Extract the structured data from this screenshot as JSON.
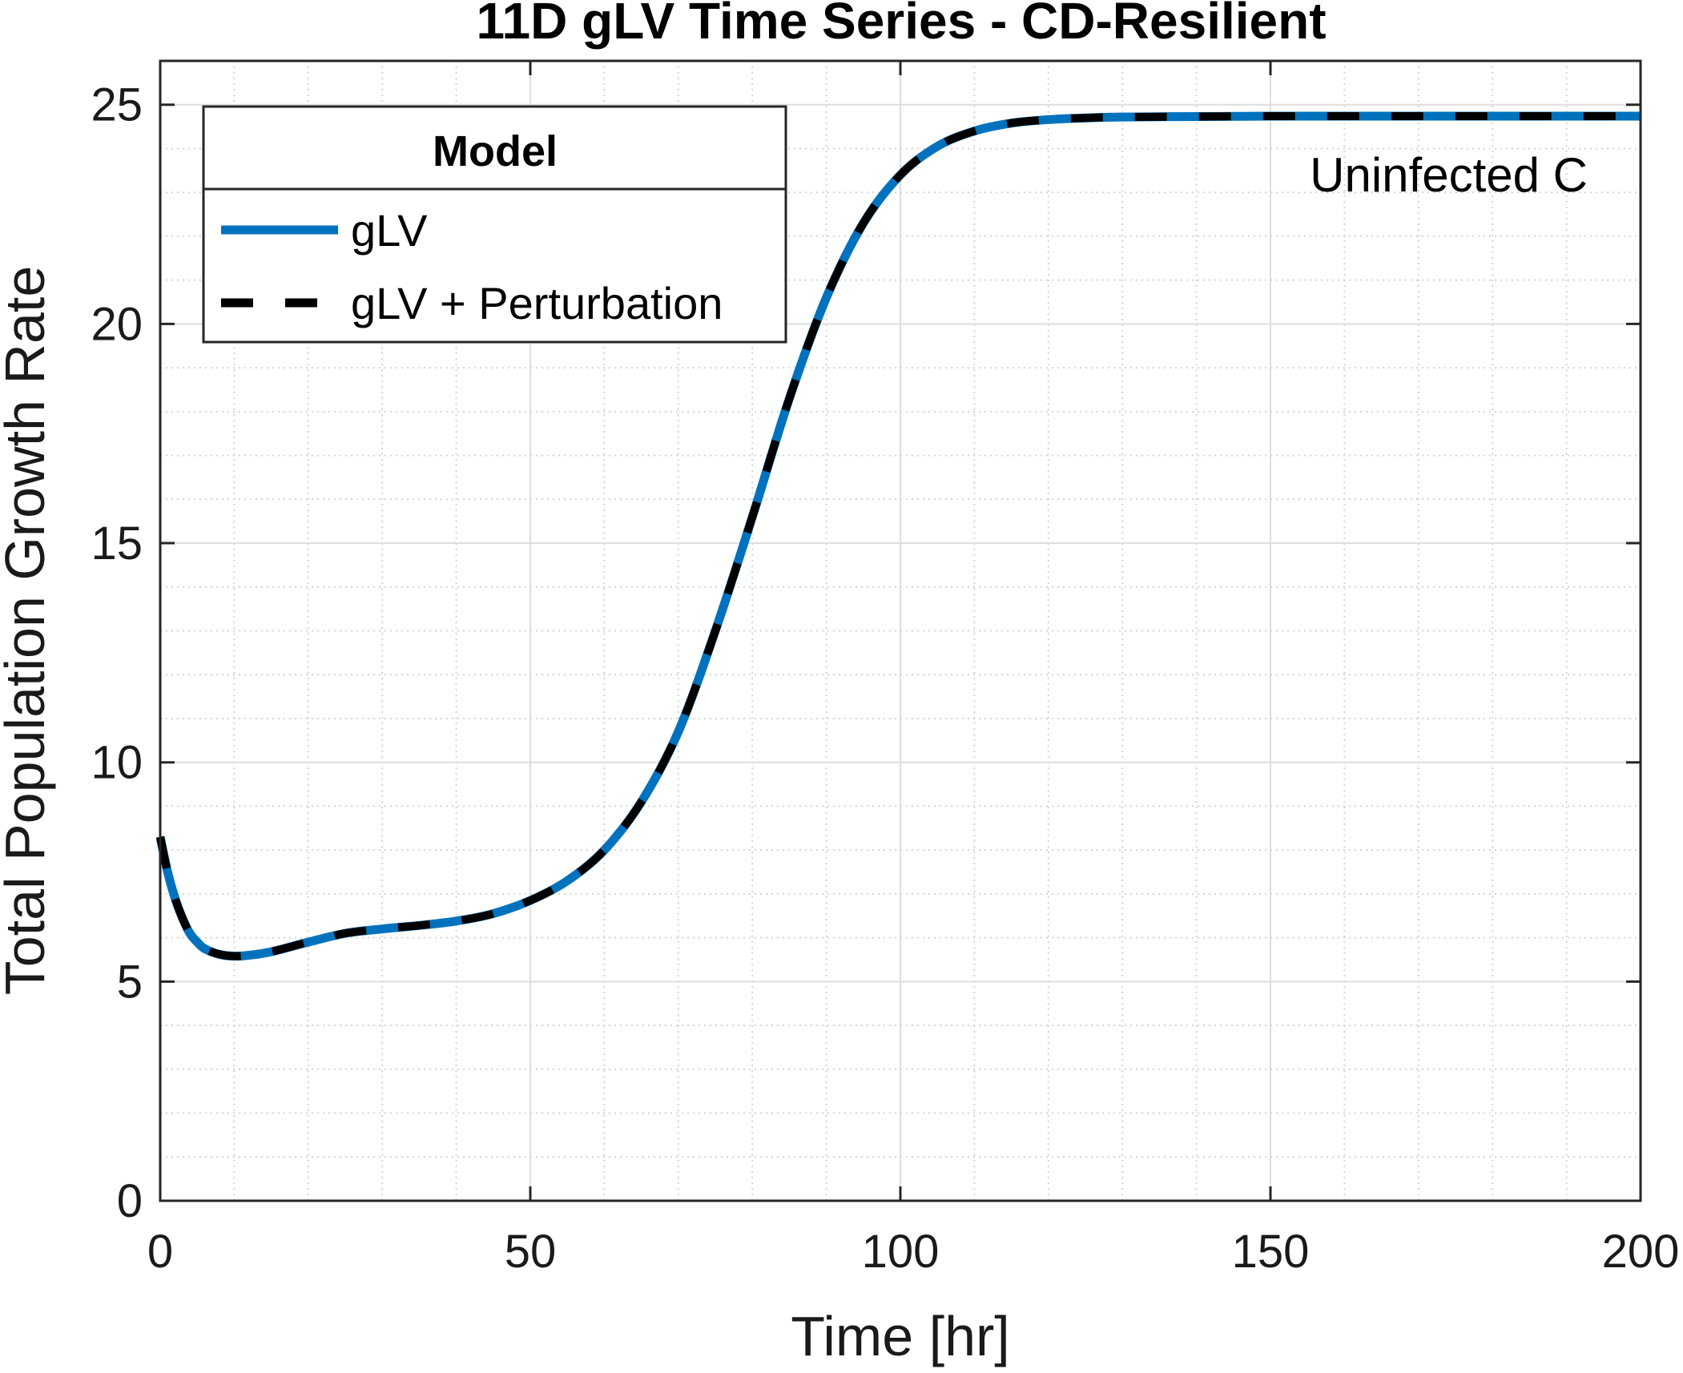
{
  "chart_data": {
    "type": "line",
    "title": "11D gLV Time Series - CD-Resilient",
    "xlabel": "Time [hr]",
    "ylabel": "Total Population Growth Rate",
    "xlim": [
      0,
      200
    ],
    "ylim": [
      0,
      26
    ],
    "xticks": [
      0,
      50,
      100,
      150,
      200
    ],
    "xtick_labels": [
      "0",
      "50",
      "100",
      "150",
      "200"
    ],
    "yticks": [
      0,
      5,
      10,
      15,
      20,
      25
    ],
    "ytick_labels": [
      "0",
      "5",
      "10",
      "15",
      "20",
      "25"
    ],
    "grid": "on",
    "minor_grid": "on",
    "legend": {
      "title": "Model",
      "placement": "top-left"
    },
    "annotation": "Uninfected C",
    "x": [
      0,
      1,
      2,
      3,
      4,
      5,
      6,
      8,
      10,
      12,
      15,
      20,
      25,
      30,
      35,
      40,
      45,
      50,
      55,
      60,
      65,
      70,
      75,
      80,
      85,
      90,
      95,
      100,
      105,
      110,
      115,
      120,
      125,
      130,
      140,
      150,
      160,
      170,
      180,
      190,
      200
    ],
    "series": [
      {
        "name": "gLV",
        "color": "#0072BD",
        "style": "solid",
        "values": [
          8.3,
          7.5,
          6.9,
          6.45,
          6.1,
          5.9,
          5.75,
          5.62,
          5.58,
          5.6,
          5.68,
          5.9,
          6.1,
          6.2,
          6.28,
          6.38,
          6.55,
          6.85,
          7.3,
          8.0,
          9.1,
          10.7,
          13.0,
          15.6,
          18.3,
          20.6,
          22.3,
          23.4,
          24.05,
          24.4,
          24.58,
          24.66,
          24.7,
          24.72,
          24.73,
          24.74,
          24.74,
          24.74,
          24.74,
          24.74,
          24.74
        ]
      },
      {
        "name": "gLV + Perturbation",
        "color": "#000000",
        "style": "dashed",
        "values": [
          8.3,
          7.5,
          6.9,
          6.45,
          6.1,
          5.9,
          5.75,
          5.62,
          5.58,
          5.6,
          5.68,
          5.9,
          6.1,
          6.2,
          6.28,
          6.38,
          6.55,
          6.85,
          7.3,
          8.0,
          9.1,
          10.7,
          13.0,
          15.6,
          18.3,
          20.6,
          22.3,
          23.4,
          24.05,
          24.4,
          24.58,
          24.66,
          24.7,
          24.72,
          24.73,
          24.74,
          24.74,
          24.74,
          24.74,
          24.74,
          24.74
        ]
      }
    ]
  }
}
